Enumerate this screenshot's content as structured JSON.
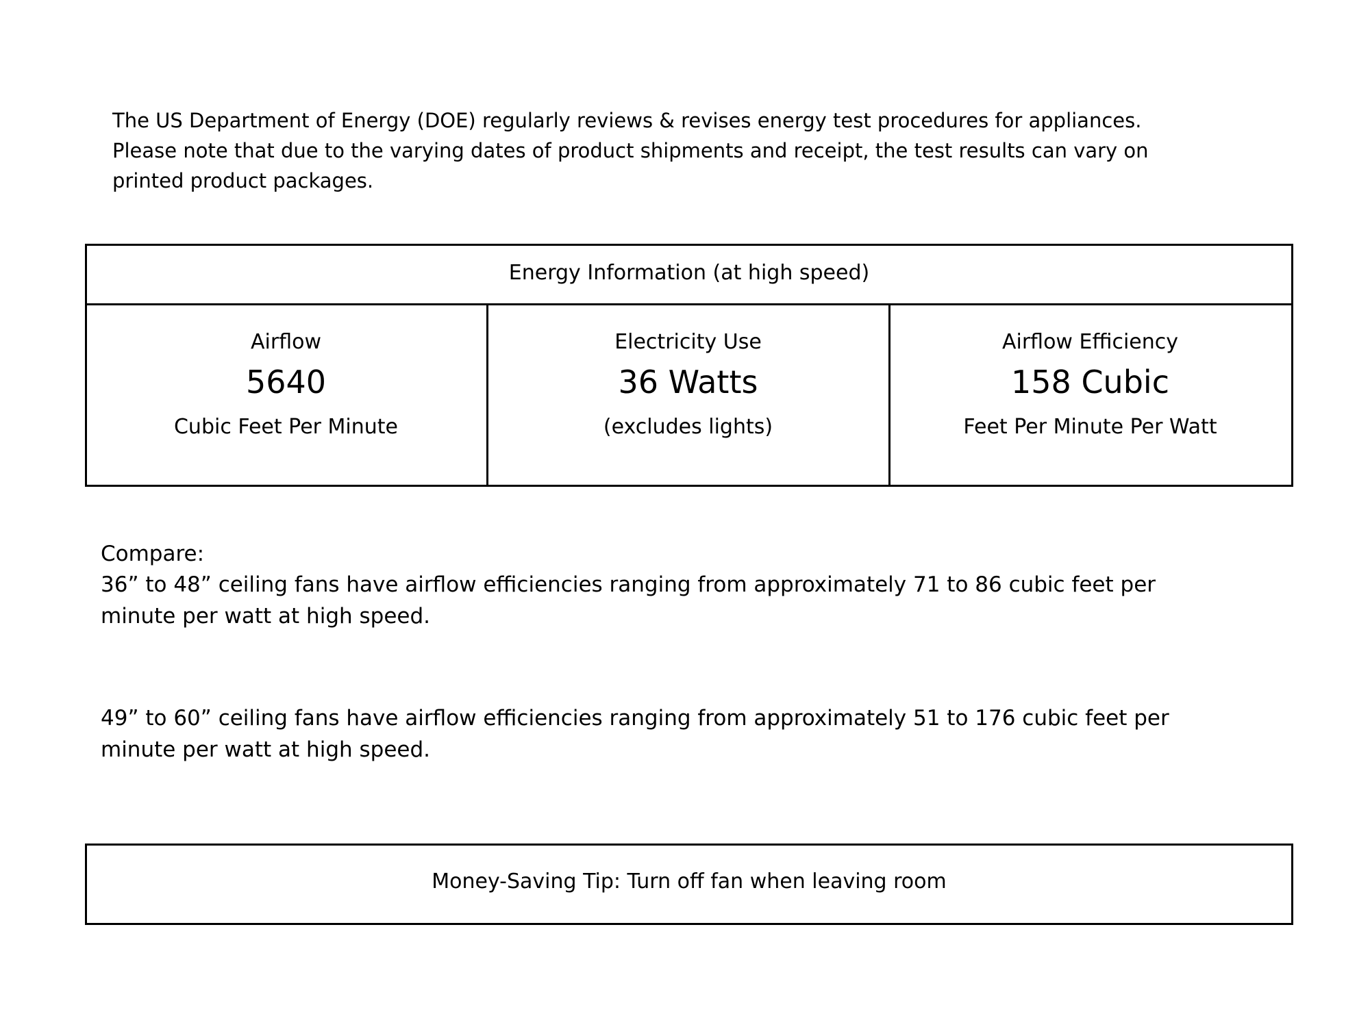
{
  "intro": {
    "lines": [
      "The US Department of Energy (DOE) regularly reviews & revises energy test procedures for appliances.",
      "Please note that due to the varying dates of product shipments and receipt, the test results can vary on",
      "printed product packages."
    ]
  },
  "energy_table": {
    "title": "Energy Information (at high speed)",
    "cells": [
      {
        "label": "Airflow",
        "value": "5640",
        "unit": "Cubic Feet Per Minute"
      },
      {
        "label": "Electricity Use",
        "value": "36 Watts",
        "unit": "(excludes lights)"
      },
      {
        "label": "Airflow Efficiency",
        "value": "158 Cubic",
        "unit": "Feet Per Minute Per Watt"
      }
    ]
  },
  "compare": {
    "heading": "Compare:",
    "paragraphs": [
      [
        "36” to 48” ceiling fans have airflow efficiencies ranging from approximately 71 to 86 cubic feet per",
        "minute per watt at high speed."
      ],
      [
        "49” to 60” ceiling fans have airflow efficiencies ranging from approximately 51 to 176 cubic feet per",
        "minute per watt at high speed."
      ]
    ]
  },
  "tip": "Money-Saving Tip: Turn off fan when leaving room"
}
